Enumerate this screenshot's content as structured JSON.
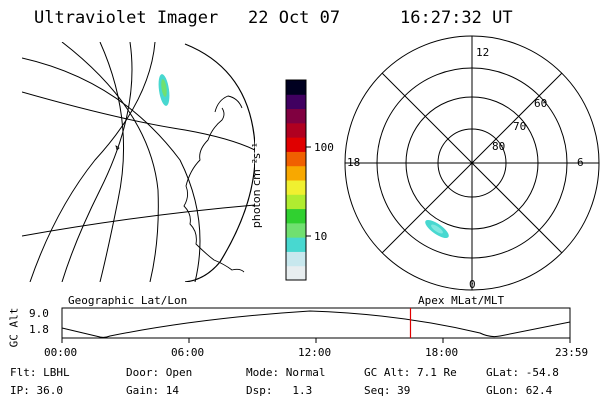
{
  "header": {
    "instrument": "Ultraviolet Imager",
    "date": "22 Oct 07",
    "time": "16:27:32 UT"
  },
  "colorbar": {
    "unit": "photon cm⁻²s⁻¹",
    "ticks": [
      "100",
      "10"
    ],
    "colors": [
      "#e8eef0",
      "#c8e8ee",
      "#48d8d0",
      "#70e070",
      "#30d030",
      "#b0ec30",
      "#f0f030",
      "#f8a800",
      "#f06000",
      "#e00000",
      "#b00020",
      "#800040",
      "#400060",
      "#000020"
    ]
  },
  "polar_plot": {
    "mlt_labels": {
      "top": "12",
      "left": "18",
      "right": "6",
      "bottom": "0"
    },
    "lat_labels": [
      "60",
      "70",
      "80"
    ]
  },
  "timeline": {
    "left_label": "Geographic Lat/Lon",
    "right_label": "Apex MLat/MLT",
    "y_axis_label": "GC Alt",
    "y_ticks": [
      "9.0",
      "1.8"
    ],
    "x_ticks": [
      "00:00",
      "06:00",
      "12:00",
      "18:00",
      "23:59"
    ],
    "current_time_fraction": 0.686,
    "marker_color": "#e00000"
  },
  "status": {
    "row1": [
      {
        "key": "Flt:",
        "value": "LBHL"
      },
      {
        "key": "Door:",
        "value": "Open"
      },
      {
        "key": "Mode:",
        "value": "Normal"
      },
      {
        "key": "GC Alt:",
        "value": "7.1 Re"
      },
      {
        "key": "GLat:",
        "value": "-54.8"
      }
    ],
    "row2": [
      {
        "key": "IP:",
        "value": "36.0"
      },
      {
        "key": "Gain:",
        "value": "14"
      },
      {
        "key": "Dsp:",
        "value": "1.3"
      },
      {
        "key": "Seq:",
        "value": "39"
      },
      {
        "key": "GLon:",
        "value": "62.4"
      }
    ]
  }
}
